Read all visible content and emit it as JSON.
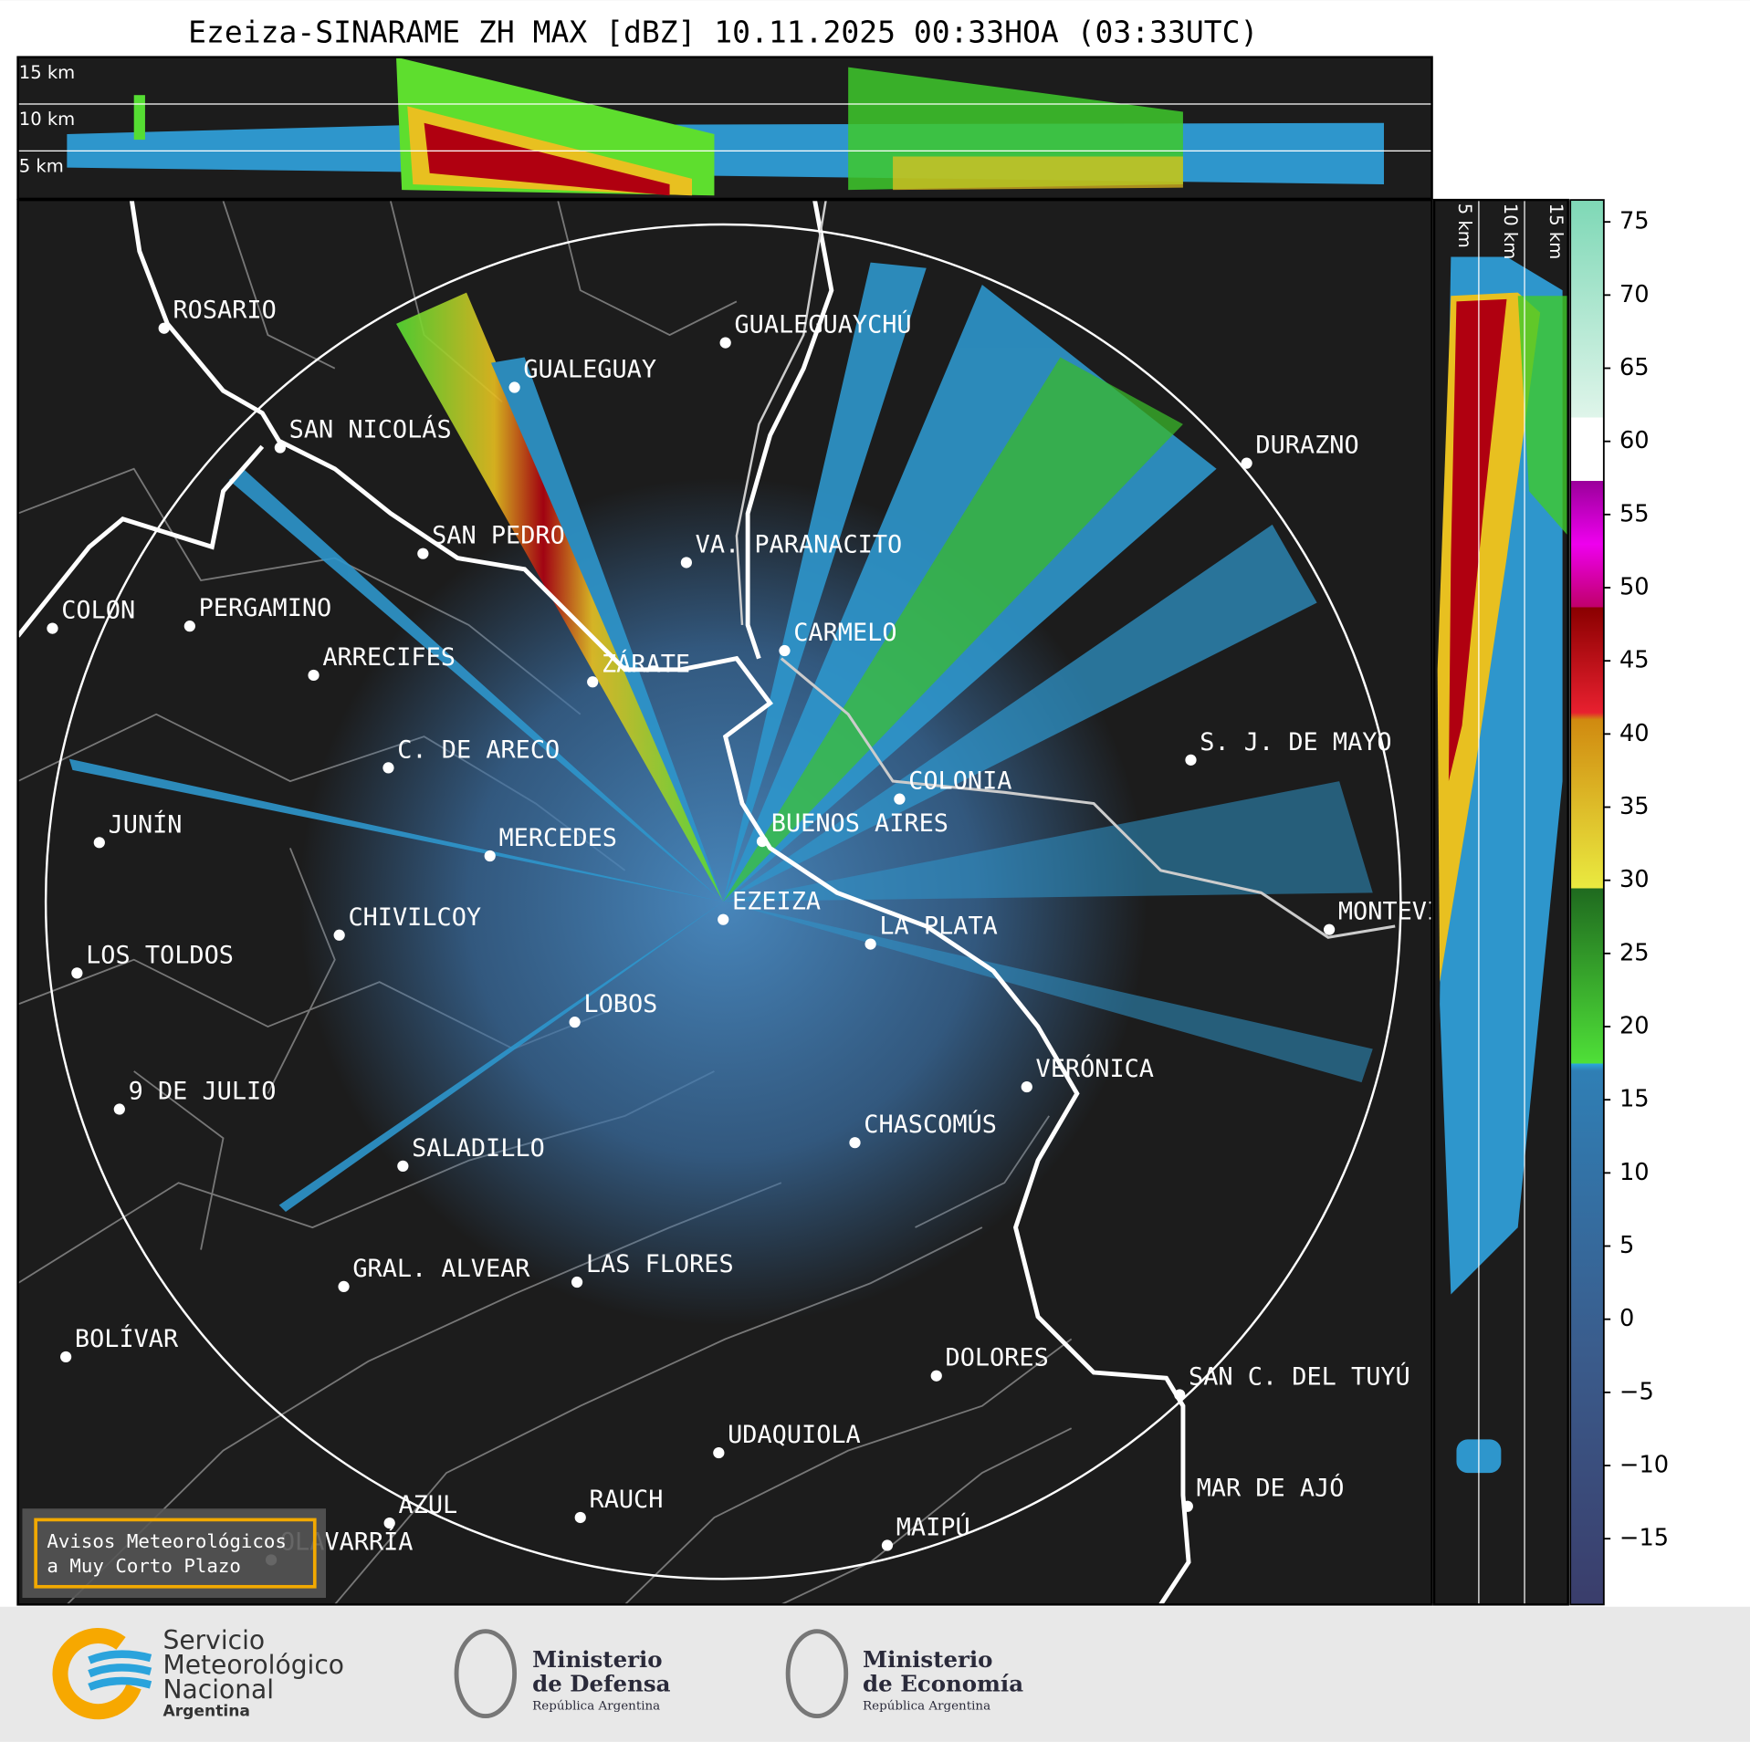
{
  "title": "Ezeiza-SINARAME ZH MAX [dBZ] 10.11.2025 00:33HOA (03:33UTC)",
  "top_panel": {
    "labels": [
      "15 km",
      "10 km",
      "5 km"
    ]
  },
  "side_panel": {
    "labels": [
      "5 km",
      "10 km",
      "15 km"
    ]
  },
  "map": {
    "cities": [
      "ROSARIO",
      "GUALEGUAYCHÚ",
      "GUALEGUAY",
      "SAN NICOLÁS",
      "DURAZNO",
      "SAN PEDRO",
      "VA. PARANACITO",
      "COLON",
      "PERGAMINO",
      "CARMELO",
      "ARRECIFES",
      "ZÁRATE",
      "S. J. DE MAYO",
      "C. DE ARECO",
      "COLONIA",
      "BUENOS AIRES",
      "JUNÍN",
      "MERCEDES",
      "MONTEVIDEO",
      "EZEIZA",
      "CHIVILCOY",
      "LA PLATA",
      "LOS TOLDOS",
      "LOBOS",
      "VERÓNICA",
      "9 DE JULIO",
      "CHASCOMÚS",
      "SALADILLO",
      "GRAL. ALVEAR",
      "LAS FLORES",
      "BOLÍVAR",
      "DOLORES",
      "SAN C. DEL TUYÚ",
      "UDAQUIOLA",
      "MAR DE AJÓ",
      "RAUCH",
      "AZUL",
      "OLAVARRÍA",
      "MAIPÚ"
    ]
  },
  "colorbar": {
    "ylim": [
      -19.5,
      76.5
    ],
    "ticks": [
      75,
      70,
      65,
      60,
      55,
      50,
      45,
      40,
      35,
      30,
      25,
      20,
      15,
      10,
      5,
      0,
      {
        "value": -5,
        "label": "−5"
      },
      {
        "value": -10,
        "label": "−10"
      },
      {
        "value": -15,
        "label": "−15"
      }
    ]
  },
  "warning_box": {
    "lines": [
      "Avisos Meteorológicos",
      "a Muy Corto Plazo"
    ]
  },
  "footer": {
    "smn": [
      "Servicio",
      "Meteorológico",
      "Nacional",
      "Argentina"
    ],
    "defensa": [
      "Ministerio",
      "de Defensa",
      "República Argentina"
    ],
    "economia": [
      "Ministerio",
      "de Economía",
      "República Argentina"
    ]
  }
}
